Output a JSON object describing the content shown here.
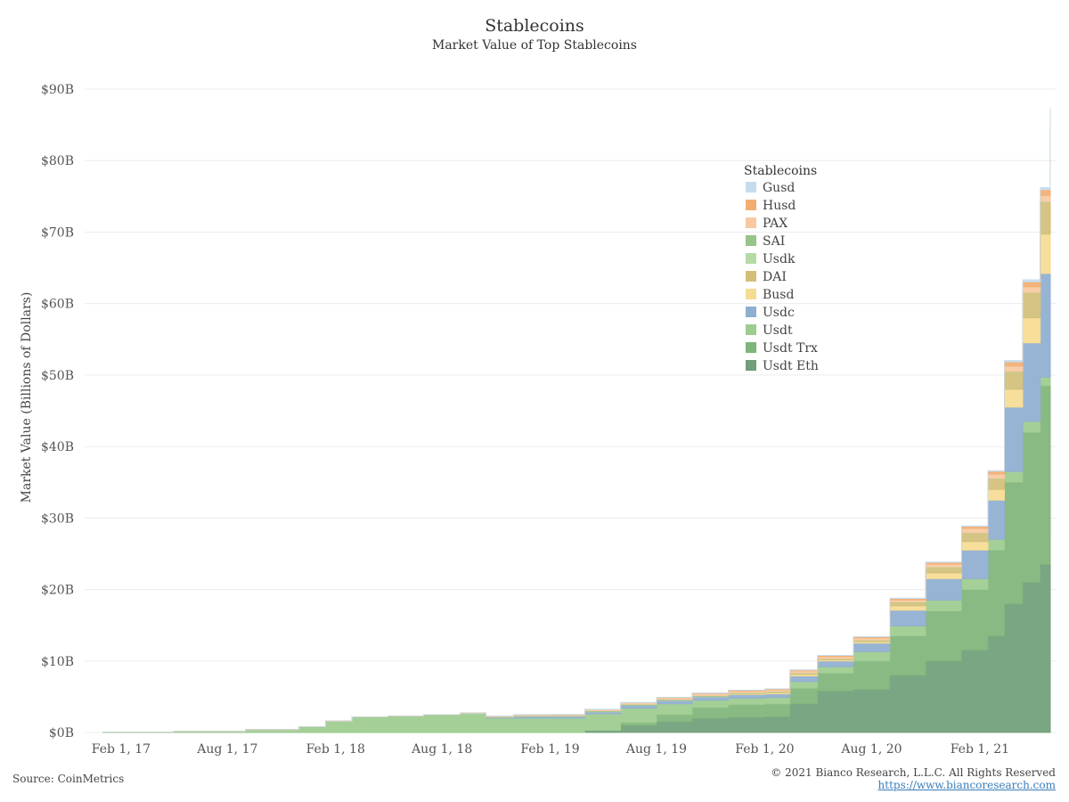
{
  "chart_data": {
    "type": "area",
    "stacked": true,
    "title": "Stablecoins",
    "subtitle": "Market Value of Top Stablecoins",
    "ylabel": "Market Value (Billions of Dollars)",
    "xlabel": "",
    "ylim": [
      0,
      90
    ],
    "y_ticks": [
      0,
      10,
      20,
      30,
      40,
      50,
      60,
      70,
      80,
      90
    ],
    "y_tick_labels": [
      "$0B",
      "$10B",
      "$20B",
      "$30B",
      "$40B",
      "$50B",
      "$60B",
      "$70B",
      "$80B",
      "$90B"
    ],
    "x_ticks": [
      "2017-02-01",
      "2017-08-01",
      "2018-02-01",
      "2018-08-01",
      "2019-02-01",
      "2019-08-01",
      "2020-02-01",
      "2020-08-01",
      "2021-02-01"
    ],
    "x_tick_labels": [
      "Feb 1, 17",
      "Aug 1, 17",
      "Feb 1, 18",
      "Aug 1, 18",
      "Feb 1, 19",
      "Aug 1, 19",
      "Feb 1, 20",
      "Aug 1, 20",
      "Feb 1, 21"
    ],
    "xlim": [
      "2016-12-01",
      "2021-06-10"
    ],
    "grid": true,
    "legend_title": "Stablecoins",
    "legend_position": "right",
    "x": [
      "2017-01-01",
      "2017-05-01",
      "2017-09-01",
      "2017-12-01",
      "2018-01-15",
      "2018-03-01",
      "2018-05-01",
      "2018-07-01",
      "2018-09-01",
      "2018-10-15",
      "2018-12-01",
      "2019-02-01",
      "2019-04-01",
      "2019-06-01",
      "2019-08-01",
      "2019-10-01",
      "2019-12-01",
      "2020-02-01",
      "2020-03-15",
      "2020-05-01",
      "2020-07-01",
      "2020-09-01",
      "2020-11-01",
      "2021-01-01",
      "2021-02-15",
      "2021-03-15",
      "2021-04-15",
      "2021-05-15",
      "2021-06-01"
    ],
    "series": [
      {
        "name": "Usdt Eth",
        "color": "#6f9e78",
        "values": [
          0,
          0,
          0,
          0,
          0,
          0,
          0,
          0,
          0,
          0,
          0,
          0,
          0.3,
          1.0,
          1.5,
          2.0,
          2.1,
          2.2,
          4.0,
          5.8,
          6.0,
          8.0,
          10.0,
          11.5,
          13.5,
          18.0,
          21.0,
          23.5,
          27.0
        ]
      },
      {
        "name": "Usdt Trx",
        "color": "#7fb47a",
        "values": [
          0,
          0,
          0,
          0,
          0,
          0,
          0,
          0,
          0,
          0,
          0,
          0,
          0,
          0.4,
          1.0,
          1.5,
          1.8,
          1.8,
          2.2,
          2.5,
          4.0,
          5.5,
          7.0,
          8.5,
          12.0,
          17.0,
          21.0,
          25.0,
          31.0
        ]
      },
      {
        "name": "Usdt",
        "color": "#9ccc8e",
        "values": [
          0.05,
          0.15,
          0.4,
          0.8,
          1.6,
          2.2,
          2.3,
          2.5,
          2.7,
          2.0,
          2.0,
          2.0,
          2.3,
          2.0,
          1.5,
          1.0,
          0.9,
          0.9,
          0.9,
          0.9,
          1.3,
          1.4,
          1.5,
          1.5,
          1.5,
          1.5,
          1.5,
          1.2,
          1.2
        ]
      },
      {
        "name": "Usdc",
        "color": "#8faed0",
        "values": [
          0,
          0,
          0,
          0,
          0,
          0,
          0,
          0,
          0,
          0.15,
          0.25,
          0.25,
          0.3,
          0.4,
          0.5,
          0.5,
          0.5,
          0.5,
          0.8,
          0.8,
          1.2,
          2.2,
          3.0,
          4.0,
          5.5,
          9.0,
          11.0,
          14.5,
          15.0
        ]
      },
      {
        "name": "Busd",
        "color": "#f6dc93",
        "values": [
          0,
          0,
          0,
          0,
          0,
          0,
          0,
          0,
          0,
          0,
          0,
          0,
          0,
          0,
          0,
          0.05,
          0.1,
          0.15,
          0.2,
          0.15,
          0.2,
          0.6,
          0.8,
          1.2,
          1.5,
          2.5,
          3.5,
          5.5,
          6.0
        ]
      },
      {
        "name": "DAI",
        "color": "#d1bf7a",
        "values": [
          0,
          0,
          0,
          0,
          0,
          0,
          0,
          0,
          0,
          0,
          0,
          0,
          0,
          0,
          0,
          0,
          0.05,
          0.1,
          0.15,
          0.12,
          0.15,
          0.5,
          0.8,
          1.2,
          1.5,
          2.5,
          3.5,
          4.5,
          5.0
        ]
      },
      {
        "name": "Usdk",
        "color": "#b5dba4",
        "values": [
          0,
          0,
          0,
          0,
          0,
          0,
          0,
          0,
          0,
          0,
          0.02,
          0.03,
          0.03,
          0.03,
          0.03,
          0.03,
          0.03,
          0.03,
          0.03,
          0.03,
          0.03,
          0.03,
          0.03,
          0.03,
          0.03,
          0.03,
          0.03,
          0.03,
          0.03
        ]
      },
      {
        "name": "SAI",
        "color": "#96c48a",
        "values": [
          0,
          0,
          0,
          0,
          0,
          0,
          0,
          0,
          0,
          0.05,
          0.07,
          0.08,
          0.1,
          0.1,
          0.08,
          0.08,
          0.06,
          0.04,
          0.03,
          0.02,
          0.02,
          0.02,
          0.02,
          0.01,
          0.01,
          0.01,
          0.01,
          0.01,
          0.01
        ]
      },
      {
        "name": "PAX",
        "color": "#f8c9a0",
        "values": [
          0,
          0,
          0,
          0,
          0,
          0,
          0,
          0,
          0,
          0.1,
          0.15,
          0.15,
          0.2,
          0.25,
          0.25,
          0.25,
          0.25,
          0.25,
          0.3,
          0.3,
          0.3,
          0.3,
          0.4,
          0.6,
          0.6,
          0.7,
          0.8,
          0.9,
          0.9
        ]
      },
      {
        "name": "Husd",
        "color": "#f2ae72",
        "values": [
          0,
          0,
          0,
          0,
          0,
          0,
          0,
          0,
          0,
          0,
          0,
          0,
          0,
          0,
          0.05,
          0.08,
          0.1,
          0.12,
          0.12,
          0.15,
          0.18,
          0.2,
          0.25,
          0.3,
          0.4,
          0.6,
          0.7,
          0.8,
          0.9
        ]
      },
      {
        "name": "Gusd",
        "color": "#c5dcef",
        "values": [
          0,
          0,
          0,
          0,
          0,
          0,
          0,
          0,
          0,
          0.02,
          0.03,
          0.03,
          0.03,
          0.03,
          0.03,
          0.03,
          0.03,
          0.03,
          0.03,
          0.03,
          0.03,
          0.03,
          0.05,
          0.05,
          0.1,
          0.2,
          0.3,
          0.3,
          0.4
        ]
      }
    ]
  },
  "footer": {
    "source": "Source: CoinMetrics",
    "copyright": "© 2021 Bianco Research, L.L.C. All Rights Reserved",
    "link": "https://www.biancoresearch.com"
  }
}
